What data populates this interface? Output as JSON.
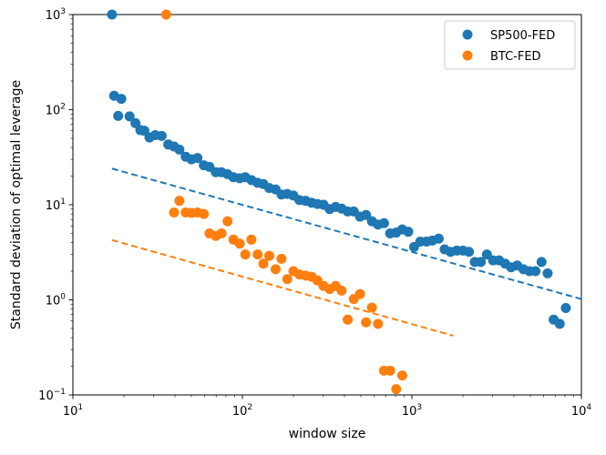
{
  "chart_data": {
    "type": "scatter",
    "title": "",
    "xlabel": "window size",
    "ylabel": "Standard deviation of optimal leverage",
    "xscale": "log",
    "yscale": "log",
    "xlim": [
      10,
      10000
    ],
    "ylim": [
      0.1,
      1000
    ],
    "x_ticks": [
      {
        "value": 10,
        "base": "10",
        "exp": "1"
      },
      {
        "value": 100,
        "base": "10",
        "exp": "2"
      },
      {
        "value": 1000,
        "base": "10",
        "exp": "3"
      },
      {
        "value": 10000,
        "base": "10",
        "exp": "4"
      }
    ],
    "y_ticks": [
      {
        "value": 0.1,
        "base": "10",
        "exp": "−1"
      },
      {
        "value": 1,
        "base": "10",
        "exp": "0"
      },
      {
        "value": 10,
        "base": "10",
        "exp": "1"
      },
      {
        "value": 100,
        "base": "10",
        "exp": "2"
      },
      {
        "value": 1000,
        "base": "10",
        "exp": "3"
      }
    ],
    "legend_position": "top-right",
    "series": [
      {
        "name": "SP500-FED",
        "color": "#1f77b4",
        "points": [
          [
            17.0,
            1000
          ],
          [
            17.5,
            140
          ],
          [
            18.5,
            86
          ],
          [
            19.3,
            130
          ],
          [
            21.6,
            85
          ],
          [
            23.4,
            72
          ],
          [
            25.0,
            61
          ],
          [
            26.4,
            60
          ],
          [
            28.3,
            51
          ],
          [
            30.6,
            54
          ],
          [
            33.4,
            53
          ],
          [
            36.5,
            43
          ],
          [
            39.5,
            41
          ],
          [
            42.5,
            38
          ],
          [
            46.3,
            32
          ],
          [
            50.1,
            30
          ],
          [
            54.3,
            31
          ],
          [
            59.2,
            26
          ],
          [
            63.9,
            25
          ],
          [
            69.7,
            22
          ],
          [
            75.3,
            22
          ],
          [
            81.7,
            21
          ],
          [
            88.5,
            19.5
          ],
          [
            96.4,
            19
          ],
          [
            104,
            19.5
          ],
          [
            113,
            18.2
          ],
          [
            123,
            17
          ],
          [
            133,
            16.5
          ],
          [
            144,
            15
          ],
          [
            157,
            14.5
          ],
          [
            170,
            12.8
          ],
          [
            184,
            13
          ],
          [
            200,
            12.5
          ],
          [
            217,
            11.2
          ],
          [
            236,
            11
          ],
          [
            256,
            10.5
          ],
          [
            277,
            10.2
          ],
          [
            301,
            10
          ],
          [
            327,
            9
          ],
          [
            355,
            9.5
          ],
          [
            385,
            9.1
          ],
          [
            418,
            8.5
          ],
          [
            454,
            8.5
          ],
          [
            494,
            7.5
          ],
          [
            536,
            7.8
          ],
          [
            581,
            6.7
          ],
          [
            631,
            6.2
          ],
          [
            685,
            6.4
          ],
          [
            744,
            5
          ],
          [
            808,
            5.1
          ],
          [
            877,
            5.5
          ],
          [
            952,
            5.2
          ],
          [
            1030,
            3.6
          ],
          [
            1120,
            4.1
          ],
          [
            1220,
            4.1
          ],
          [
            1320,
            4.2
          ],
          [
            1440,
            4.4
          ],
          [
            1560,
            3.4
          ],
          [
            1690,
            3.2
          ],
          [
            1840,
            3.3
          ],
          [
            2000,
            3.3
          ],
          [
            2170,
            3.2
          ],
          [
            2350,
            2.5
          ],
          [
            2550,
            2.5
          ],
          [
            2770,
            3
          ],
          [
            3010,
            2.6
          ],
          [
            3270,
            2.6
          ],
          [
            3550,
            2.4
          ],
          [
            3850,
            2.2
          ],
          [
            4180,
            2.3
          ],
          [
            4550,
            2.1
          ],
          [
            4940,
            2
          ],
          [
            5360,
            2
          ],
          [
            5820,
            2.5
          ],
          [
            6320,
            1.9
          ],
          [
            6860,
            0.62
          ],
          [
            7450,
            0.56
          ],
          [
            8090,
            0.82
          ]
        ],
        "fit": [
          [
            17,
            24
          ],
          [
            10000,
            1.02
          ]
        ]
      },
      {
        "name": "BTC-FED",
        "color": "#ff7f0e",
        "points": [
          [
            35.5,
            1000
          ],
          [
            39.5,
            8.3
          ],
          [
            42.5,
            11
          ],
          [
            46.3,
            8.3
          ],
          [
            50.1,
            8.2
          ],
          [
            54.3,
            8.3
          ],
          [
            59.2,
            8
          ],
          [
            63.9,
            5
          ],
          [
            69.7,
            4.7
          ],
          [
            75.3,
            5
          ],
          [
            81.7,
            6.7
          ],
          [
            88.5,
            4.3
          ],
          [
            96.4,
            3.9
          ],
          [
            104,
            3
          ],
          [
            113,
            4.3
          ],
          [
            123,
            3
          ],
          [
            133,
            2.4
          ],
          [
            144,
            2.9
          ],
          [
            157,
            2.1
          ],
          [
            170,
            2.7
          ],
          [
            184,
            1.65
          ],
          [
            200,
            2
          ],
          [
            217,
            1.85
          ],
          [
            236,
            1.8
          ],
          [
            256,
            1.75
          ],
          [
            277,
            1.6
          ],
          [
            301,
            1.4
          ],
          [
            327,
            1.3
          ],
          [
            355,
            1.4
          ],
          [
            385,
            1.25
          ],
          [
            418,
            0.62
          ],
          [
            454,
            1.02
          ],
          [
            494,
            1.15
          ],
          [
            536,
            0.58
          ],
          [
            581,
            0.83
          ],
          [
            631,
            0.56
          ],
          [
            685,
            0.18
          ],
          [
            744,
            0.18
          ],
          [
            808,
            0.115
          ],
          [
            877,
            0.16
          ]
        ],
        "fit": [
          [
            17,
            4.25
          ],
          [
            1750,
            0.42
          ]
        ]
      }
    ]
  }
}
